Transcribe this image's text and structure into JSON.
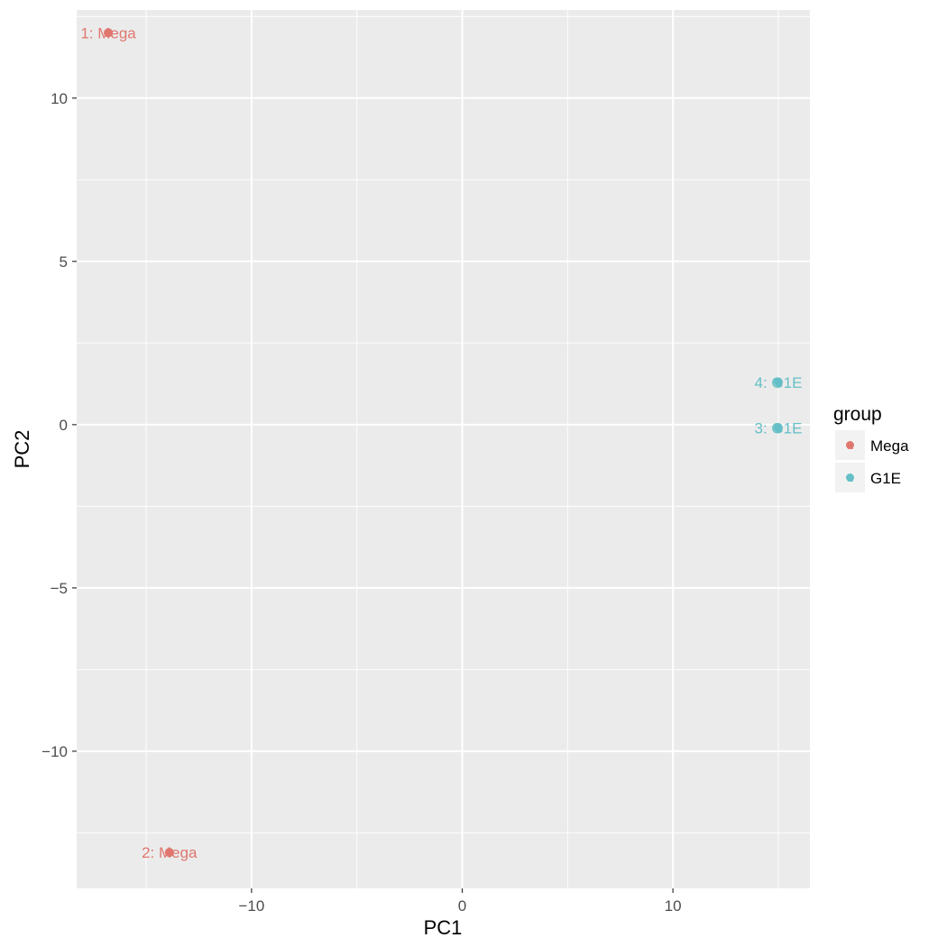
{
  "chart_data": {
    "type": "scatter",
    "xlabel": "PC1",
    "ylabel": "PC2",
    "xlim": [
      -18.3,
      16.5
    ],
    "ylim": [
      -14.2,
      12.7
    ],
    "x_ticks": [
      -10,
      0,
      10
    ],
    "x_tick_labels": [
      "−10",
      "0",
      "10"
    ],
    "x_minor_ticks": [
      -15,
      -5,
      5,
      15
    ],
    "y_ticks": [
      -10,
      -5,
      0,
      5,
      10
    ],
    "y_tick_labels": [
      "−10",
      "−5",
      "0",
      "5",
      "10"
    ],
    "y_minor_ticks": [
      -12.5,
      -7.5,
      -2.5,
      2.5,
      7.5,
      12.5
    ],
    "grid": true,
    "legend": {
      "title": "group",
      "position": "right",
      "entries": [
        {
          "label": "Mega",
          "color": "#E0776F"
        },
        {
          "label": "G1E",
          "color": "#65BFC6"
        }
      ]
    },
    "points": [
      {
        "label": "1: Mega",
        "group": "Mega",
        "x": -16.8,
        "y": 12.0
      },
      {
        "label": "2: Mega",
        "group": "Mega",
        "x": -13.9,
        "y": -13.1
      },
      {
        "label": "3: G1E",
        "group": "G1E",
        "x": 15.0,
        "y": -0.1
      },
      {
        "label": "4: G1E",
        "group": "G1E",
        "x": 15.0,
        "y": 1.3
      }
    ],
    "colors": {
      "panel_background": "#EBEBEB",
      "grid": "#FFFFFF",
      "Mega": "#E0776F",
      "G1E": "#65BFC6",
      "axis_text": "#4D4D4D"
    }
  }
}
